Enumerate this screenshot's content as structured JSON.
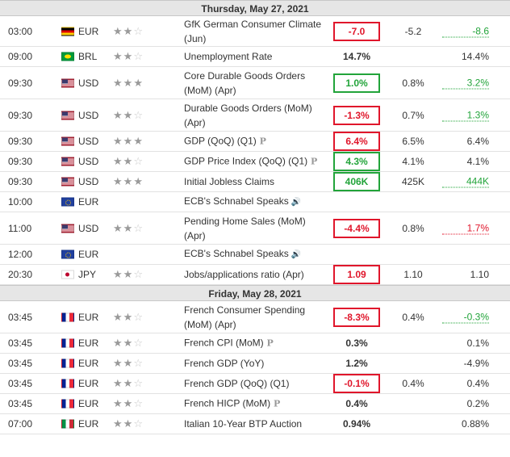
{
  "colors": {
    "negative": "#e0162b",
    "positive": "#22a43a",
    "header_bg": "#e6e6e6"
  },
  "days": [
    {
      "header": "Thursday, May 27, 2021",
      "events": [
        {
          "time": "03:00",
          "flag": "de",
          "currency": "EUR",
          "stars": 2,
          "event": "GfK German Consumer Climate (Jun)",
          "actual": "-7.0",
          "actual_status": "neg",
          "forecast": "-5.2",
          "previous": "-8.6",
          "previous_status": "pos",
          "h": 38
        },
        {
          "time": "09:00",
          "flag": "br",
          "currency": "BRL",
          "stars": 2,
          "event": "Unemployment Rate",
          "actual": "14.7%",
          "actual_status": "",
          "forecast": "",
          "previous": "14.4%",
          "previous_status": "",
          "h": 25
        },
        {
          "time": "09:30",
          "flag": "us",
          "currency": "USD",
          "stars": 3,
          "event": "Core Durable Goods Orders (MoM) (Apr)",
          "actual": "1.0%",
          "actual_status": "pos",
          "forecast": "0.8%",
          "previous": "3.2%",
          "previous_status": "pos",
          "h": 40
        },
        {
          "time": "09:30",
          "flag": "us",
          "currency": "USD",
          "stars": 2,
          "event": "Durable Goods Orders (MoM) (Apr)",
          "actual": "-1.3%",
          "actual_status": "neg",
          "forecast": "0.7%",
          "previous": "1.3%",
          "previous_status": "pos",
          "h": 40
        },
        {
          "time": "09:30",
          "flag": "us",
          "currency": "USD",
          "stars": 3,
          "event": "GDP (QoQ) (Q1)",
          "pre": true,
          "actual": "6.4%",
          "actual_status": "neg",
          "forecast": "6.5%",
          "previous": "6.4%",
          "previous_status": "",
          "h": 25
        },
        {
          "time": "09:30",
          "flag": "us",
          "currency": "USD",
          "stars": 2,
          "event": "GDP Price Index (QoQ) (Q1)",
          "pre": true,
          "actual": "4.3%",
          "actual_status": "pos",
          "forecast": "4.1%",
          "previous": "4.1%",
          "previous_status": "",
          "h": 25
        },
        {
          "time": "09:30",
          "flag": "us",
          "currency": "USD",
          "stars": 3,
          "event": "Initial Jobless Claims",
          "actual": "406K",
          "actual_status": "pos",
          "forecast": "425K",
          "previous": "444K",
          "previous_status": "pos",
          "h": 25
        },
        {
          "time": "10:00",
          "flag": "eu",
          "currency": "EUR",
          "stars": 0,
          "event": "ECB's Schnabel Speaks",
          "speech": true,
          "actual": "",
          "actual_status": "",
          "forecast": "",
          "previous": "",
          "previous_status": "",
          "h": 25
        },
        {
          "time": "11:00",
          "flag": "us",
          "currency": "USD",
          "stars": 2,
          "event": "Pending Home Sales (MoM) (Apr)",
          "actual": "-4.4%",
          "actual_status": "neg",
          "forecast": "0.8%",
          "previous": "1.7%",
          "previous_status": "neg",
          "h": 40
        },
        {
          "time": "12:00",
          "flag": "eu",
          "currency": "EUR",
          "stars": 0,
          "event": "ECB's Schnabel Speaks",
          "speech": true,
          "actual": "",
          "actual_status": "",
          "forecast": "",
          "previous": "",
          "previous_status": "",
          "h": 25
        },
        {
          "time": "20:30",
          "flag": "jp",
          "currency": "JPY",
          "stars": 2,
          "event": "Jobs/applications ratio (Apr)",
          "actual": "1.09",
          "actual_status": "neg",
          "forecast": "1.10",
          "previous": "1.10",
          "previous_status": "",
          "h": 25
        }
      ]
    },
    {
      "header": "Friday, May 28, 2021",
      "events": [
        {
          "time": "03:45",
          "flag": "fr",
          "currency": "EUR",
          "stars": 2,
          "event": "French Consumer Spending (MoM) (Apr)",
          "actual": "-8.3%",
          "actual_status": "neg",
          "forecast": "0.4%",
          "previous": "-0.3%",
          "previous_status": "pos",
          "h": 40
        },
        {
          "time": "03:45",
          "flag": "fr",
          "currency": "EUR",
          "stars": 2,
          "event": "French CPI (MoM)",
          "pre": true,
          "actual": "0.3%",
          "actual_status": "",
          "forecast": "",
          "previous": "0.1%",
          "previous_status": "",
          "h": 25
        },
        {
          "time": "03:45",
          "flag": "fr",
          "currency": "EUR",
          "stars": 2,
          "event": "French GDP (YoY)",
          "actual": "1.2%",
          "actual_status": "",
          "forecast": "",
          "previous": "-4.9%",
          "previous_status": "",
          "h": 25
        },
        {
          "time": "03:45",
          "flag": "fr",
          "currency": "EUR",
          "stars": 2,
          "event": "French GDP (QoQ) (Q1)",
          "actual": "-0.1%",
          "actual_status": "neg",
          "forecast": "0.4%",
          "previous": "0.4%",
          "previous_status": "",
          "h": 25
        },
        {
          "time": "03:45",
          "flag": "fr",
          "currency": "EUR",
          "stars": 2,
          "event": "French HICP (MoM)",
          "pre": true,
          "actual": "0.4%",
          "actual_status": "",
          "forecast": "",
          "previous": "0.2%",
          "previous_status": "",
          "h": 25
        },
        {
          "time": "07:00",
          "flag": "it",
          "currency": "EUR",
          "stars": 2,
          "event": "Italian 10-Year BTP Auction",
          "actual": "0.94%",
          "actual_status": "",
          "forecast": "",
          "previous": "0.88%",
          "previous_status": "",
          "h": 25
        }
      ]
    }
  ]
}
